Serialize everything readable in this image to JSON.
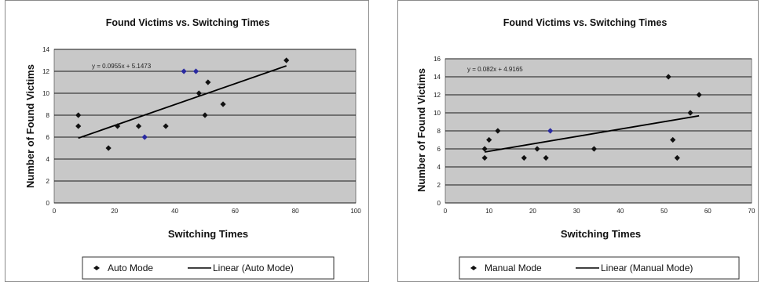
{
  "chart_data": [
    {
      "type": "scatter",
      "title": "Found Victims vs. Switching Times",
      "xlabel": "Switching Times",
      "ylabel": "Number of Found Victims",
      "xlim": [
        0,
        100
      ],
      "ylim": [
        0,
        14
      ],
      "xticks": [
        "0",
        "20",
        "40",
        "60",
        "80",
        "100"
      ],
      "yticks": [
        "0",
        "2",
        "4",
        "6",
        "8",
        "10",
        "12",
        "14"
      ],
      "grid": true,
      "legend_position": "bottom",
      "series": [
        {
          "name": "Auto Mode",
          "kind": "scatter",
          "points": [
            [
              8,
              8
            ],
            [
              8,
              7
            ],
            [
              18,
              5
            ],
            [
              21,
              7
            ],
            [
              28,
              7
            ],
            [
              30,
              6
            ],
            [
              37,
              7
            ],
            [
              43,
              12
            ],
            [
              47,
              12
            ],
            [
              48,
              10
            ],
            [
              50,
              8
            ],
            [
              51,
              11
            ],
            [
              56,
              9
            ],
            [
              77,
              13
            ]
          ]
        },
        {
          "name": "Linear (Auto Mode)",
          "kind": "trendline",
          "slope": 0.0955,
          "intercept": 5.1473,
          "x_range": [
            8,
            77
          ]
        }
      ],
      "annotation": "y = 0.0955x + 5.1473",
      "colors": {
        "plot_bg": "#c8c8c8",
        "marker": "#111111",
        "marker_highlight": "#2a2aa0",
        "line": "#000000"
      }
    },
    {
      "type": "scatter",
      "title": "Found Victims vs. Switching Times",
      "xlabel": "Switching Times",
      "ylabel": "Number of Found Victims",
      "xlim": [
        0,
        70
      ],
      "ylim": [
        0,
        16
      ],
      "xticks": [
        "0",
        "10",
        "20",
        "30",
        "40",
        "50",
        "60",
        "70"
      ],
      "yticks": [
        "0",
        "2",
        "4",
        "6",
        "8",
        "10",
        "12",
        "14",
        "16"
      ],
      "grid": true,
      "legend_position": "bottom",
      "series": [
        {
          "name": "Manual Mode",
          "kind": "scatter",
          "points": [
            [
              9,
              5
            ],
            [
              9,
              6
            ],
            [
              10,
              7
            ],
            [
              12,
              8
            ],
            [
              18,
              5
            ],
            [
              21,
              6
            ],
            [
              23,
              5
            ],
            [
              24,
              8
            ],
            [
              34,
              6
            ],
            [
              51,
              14
            ],
            [
              52,
              7
            ],
            [
              53,
              5
            ],
            [
              56,
              10
            ],
            [
              58,
              12
            ]
          ]
        },
        {
          "name": "Linear (Manual Mode)",
          "kind": "trendline",
          "slope": 0.082,
          "intercept": 4.9165,
          "x_range": [
            9,
            58
          ]
        }
      ],
      "annotation": "y = 0.082x + 4.9165",
      "colors": {
        "plot_bg": "#c8c8c8",
        "marker": "#111111",
        "marker_highlight": "#2a2aa0",
        "line": "#000000"
      }
    }
  ]
}
